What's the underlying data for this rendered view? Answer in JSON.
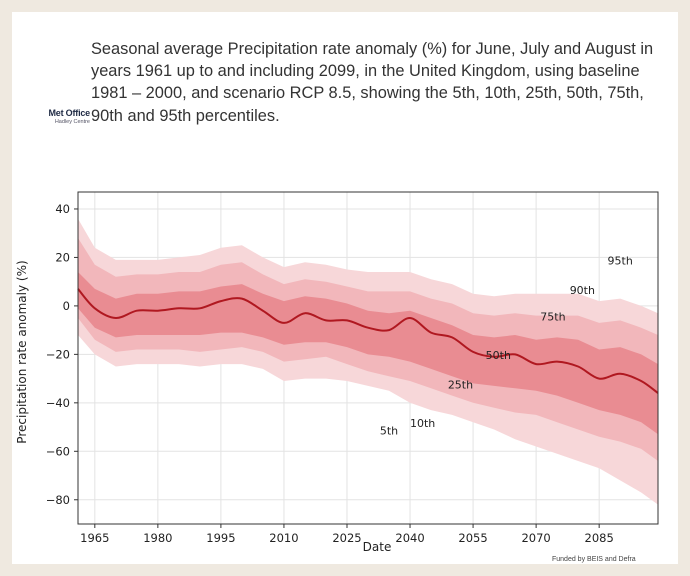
{
  "logo": {
    "main": "Met Office",
    "sub": "Hadley Centre"
  },
  "title": "Seasonal average Precipitation rate anomaly (%) for June, July and August in years 1961 up to and including 2099, in the United Kingdom, using baseline 1981 – 2000, and scenario RCP 8.5, showing the 5th, 10th, 25th, 50th, 75th, 90th and 95th percentiles.",
  "funded_by": "Funded by BEIS and Defra",
  "colors": {
    "band_95": "#f7d7d9",
    "band_90": "#f2b7bb",
    "band_75": "#e98c92",
    "median": "#b01820"
  },
  "chart_data": {
    "type": "area",
    "xlabel": "Date",
    "ylabel": "Precipitation rate anomaly (%)",
    "xlim": [
      1961,
      2099
    ],
    "ylim": [
      -90,
      47
    ],
    "grid": true,
    "xticks": [
      1965,
      1980,
      1995,
      2010,
      2025,
      2040,
      2055,
      2070,
      2085
    ],
    "yticks": [
      40,
      20,
      0,
      -20,
      -40,
      -60,
      -80
    ],
    "x": [
      1961,
      1965,
      1970,
      1975,
      1980,
      1985,
      1990,
      1995,
      2000,
      2005,
      2010,
      2015,
      2020,
      2025,
      2030,
      2035,
      2040,
      2045,
      2050,
      2055,
      2060,
      2065,
      2070,
      2075,
      2080,
      2085,
      2090,
      2095,
      2099
    ],
    "series": [
      {
        "name": "5th",
        "values": [
          -12,
          -20,
          -25,
          -24,
          -24,
          -24,
          -25,
          -24,
          -24,
          -26,
          -31,
          -30,
          -30,
          -31,
          -33,
          -35,
          -40,
          -43,
          -45,
          -48,
          -51,
          -55,
          -58,
          -61,
          -64,
          -67,
          -72,
          -77,
          -82
        ]
      },
      {
        "name": "10th",
        "values": [
          -5,
          -14,
          -19,
          -18,
          -18,
          -18,
          -19,
          -18,
          -17,
          -19,
          -23,
          -22,
          -21,
          -24,
          -27,
          -29,
          -31,
          -34,
          -37,
          -40,
          -42,
          -44,
          -45,
          -48,
          -51,
          -54,
          -56,
          -59,
          -64
        ]
      },
      {
        "name": "25th",
        "values": [
          -1,
          -9,
          -13,
          -12,
          -12,
          -12,
          -12,
          -11,
          -11,
          -13,
          -16,
          -15,
          -15,
          -17,
          -20,
          -21,
          -23,
          -26,
          -29,
          -32,
          -33,
          -34,
          -35,
          -37,
          -40,
          -43,
          -45,
          -48,
          -53
        ]
      },
      {
        "name": "50th",
        "values": [
          7,
          -1,
          -5,
          -2,
          -2,
          -1,
          -1,
          2,
          3,
          -2,
          -7,
          -3,
          -6,
          -6,
          -9,
          -10,
          -5,
          -11,
          -13,
          -19,
          -21,
          -20,
          -24,
          -23,
          -25,
          -30,
          -28,
          -31,
          -36
        ]
      },
      {
        "name": "75th",
        "values": [
          14,
          7,
          3,
          5,
          5,
          6,
          6,
          8,
          9,
          5,
          2,
          4,
          3,
          1,
          -2,
          -3,
          -2,
          -5,
          -8,
          -12,
          -13,
          -12,
          -14,
          -13,
          -14,
          -18,
          -17,
          -20,
          -24
        ]
      },
      {
        "name": "90th",
        "values": [
          28,
          17,
          12,
          13,
          13,
          14,
          14,
          17,
          18,
          13,
          9,
          11,
          10,
          8,
          6,
          6,
          6,
          3,
          1,
          -3,
          -4,
          -3,
          -4,
          -4,
          -4,
          -7,
          -6,
          -9,
          -12
        ]
      },
      {
        "name": "95th",
        "values": [
          36,
          24,
          19,
          19,
          19,
          20,
          21,
          24,
          25,
          20,
          16,
          18,
          17,
          15,
          14,
          14,
          14,
          11,
          9,
          5,
          4,
          5,
          5,
          5,
          5,
          2,
          3,
          0,
          -3
        ]
      }
    ],
    "percentile_labels": [
      {
        "text": "95th",
        "x": 2090,
        "y": 17
      },
      {
        "text": "90th",
        "x": 2081,
        "y": 5
      },
      {
        "text": "75th",
        "x": 2074,
        "y": -6
      },
      {
        "text": "50th",
        "x": 2061,
        "y": -22
      },
      {
        "text": "25th",
        "x": 2052,
        "y": -34
      },
      {
        "text": "10th",
        "x": 2043,
        "y": -50
      },
      {
        "text": "5th",
        "x": 2035,
        "y": -53
      }
    ]
  }
}
